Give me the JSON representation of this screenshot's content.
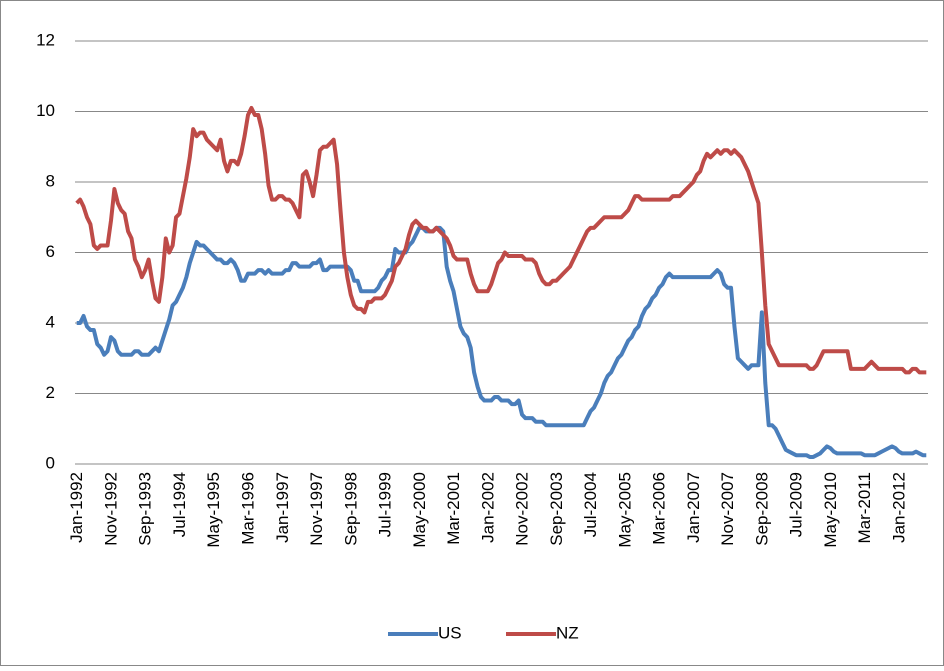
{
  "chart_data": {
    "type": "line",
    "categories": [
      "Jan-1992",
      null,
      null,
      null,
      null,
      null,
      null,
      null,
      null,
      null,
      "Nov-1992",
      null,
      null,
      null,
      null,
      null,
      null,
      null,
      null,
      null,
      "Sep-1993",
      null,
      null,
      null,
      null,
      null,
      null,
      null,
      null,
      null,
      "Jul-1994",
      null,
      null,
      null,
      null,
      null,
      null,
      null,
      null,
      null,
      "May-1995",
      null,
      null,
      null,
      null,
      null,
      null,
      null,
      null,
      null,
      "Mar-1996",
      null,
      null,
      null,
      null,
      null,
      null,
      null,
      null,
      null,
      "Jan-1997",
      null,
      null,
      null,
      null,
      null,
      null,
      null,
      null,
      null,
      "Nov-1997",
      null,
      null,
      null,
      null,
      null,
      null,
      null,
      null,
      null,
      "Sep-1998",
      null,
      null,
      null,
      null,
      null,
      null,
      null,
      null,
      null,
      "Jul-1999",
      null,
      null,
      null,
      null,
      null,
      null,
      null,
      null,
      null,
      "May-2000",
      null,
      null,
      null,
      null,
      null,
      null,
      null,
      null,
      null,
      "Mar-2001",
      null,
      null,
      null,
      null,
      null,
      null,
      null,
      null,
      null,
      "Jan-2002",
      null,
      null,
      null,
      null,
      null,
      null,
      null,
      null,
      null,
      "Nov-2002",
      null,
      null,
      null,
      null,
      null,
      null,
      null,
      null,
      null,
      "Sep-2003",
      null,
      null,
      null,
      null,
      null,
      null,
      null,
      null,
      null,
      "Jul-2004",
      null,
      null,
      null,
      null,
      null,
      null,
      null,
      null,
      null,
      "May-2005",
      null,
      null,
      null,
      null,
      null,
      null,
      null,
      null,
      null,
      "Mar-2006",
      null,
      null,
      null,
      null,
      null,
      null,
      null,
      null,
      null,
      "Jan-2007",
      null,
      null,
      null,
      null,
      null,
      null,
      null,
      null,
      null,
      "Nov-2007",
      null,
      null,
      null,
      null,
      null,
      null,
      null,
      null,
      null,
      "Sep-2008",
      null,
      null,
      null,
      null,
      null,
      null,
      null,
      null,
      null,
      "Jul-2009",
      null,
      null,
      null,
      null,
      null,
      null,
      null,
      null,
      null,
      "May-2010",
      null,
      null,
      null,
      null,
      null,
      null,
      null,
      null,
      null,
      "Mar-2011",
      null,
      null,
      null,
      null,
      null,
      null,
      null,
      null,
      null,
      "Jan-2012",
      null,
      null,
      null,
      null,
      null,
      null,
      null,
      null
    ],
    "series": [
      {
        "name": "US",
        "color": "#4a7ebb",
        "values": [
          4.0,
          4.0,
          4.2,
          3.9,
          3.8,
          3.8,
          3.4,
          3.3,
          3.1,
          3.2,
          3.6,
          3.5,
          3.2,
          3.1,
          3.1,
          3.1,
          3.1,
          3.2,
          3.2,
          3.1,
          3.1,
          3.1,
          3.2,
          3.3,
          3.2,
          3.5,
          3.8,
          4.1,
          4.5,
          4.6,
          4.8,
          5.0,
          5.3,
          5.7,
          6.0,
          6.3,
          6.2,
          6.2,
          6.1,
          6.0,
          5.9,
          5.8,
          5.8,
          5.7,
          5.7,
          5.8,
          5.7,
          5.5,
          5.2,
          5.2,
          5.4,
          5.4,
          5.4,
          5.5,
          5.5,
          5.4,
          5.5,
          5.4,
          5.4,
          5.4,
          5.4,
          5.5,
          5.5,
          5.7,
          5.7,
          5.6,
          5.6,
          5.6,
          5.6,
          5.7,
          5.7,
          5.8,
          5.5,
          5.5,
          5.6,
          5.6,
          5.6,
          5.6,
          5.6,
          5.6,
          5.5,
          5.2,
          5.2,
          4.9,
          4.9,
          4.9,
          4.9,
          4.9,
          5.0,
          5.2,
          5.3,
          5.5,
          5.5,
          6.1,
          6.0,
          6.0,
          6.0,
          6.2,
          6.3,
          6.5,
          6.7,
          6.7,
          6.6,
          6.6,
          6.6,
          6.7,
          6.7,
          6.6,
          5.6,
          5.2,
          4.9,
          4.4,
          3.9,
          3.7,
          3.6,
          3.3,
          2.6,
          2.2,
          1.9,
          1.8,
          1.8,
          1.8,
          1.9,
          1.9,
          1.8,
          1.8,
          1.8,
          1.7,
          1.7,
          1.8,
          1.4,
          1.3,
          1.3,
          1.3,
          1.2,
          1.2,
          1.2,
          1.1,
          1.1,
          1.1,
          1.1,
          1.1,
          1.1,
          1.1,
          1.1,
          1.1,
          1.1,
          1.1,
          1.1,
          1.3,
          1.5,
          1.6,
          1.8,
          2.0,
          2.3,
          2.5,
          2.6,
          2.8,
          3.0,
          3.1,
          3.3,
          3.5,
          3.6,
          3.8,
          3.9,
          4.2,
          4.4,
          4.5,
          4.7,
          4.8,
          5.0,
          5.1,
          5.3,
          5.4,
          5.3,
          5.3,
          5.3,
          5.3,
          5.3,
          5.3,
          5.3,
          5.3,
          5.3,
          5.3,
          5.3,
          5.3,
          5.4,
          5.5,
          5.4,
          5.1,
          5.0,
          5.0,
          3.9,
          3.0,
          2.9,
          2.8,
          2.7,
          2.8,
          2.8,
          2.8,
          4.3,
          2.3,
          1.1,
          1.1,
          1.0,
          0.8,
          0.6,
          0.4,
          0.35,
          0.3,
          0.25,
          0.25,
          0.25,
          0.25,
          0.2,
          0.2,
          0.25,
          0.3,
          0.4,
          0.5,
          0.45,
          0.35,
          0.3,
          0.3,
          0.3,
          0.3,
          0.3,
          0.3,
          0.3,
          0.3,
          0.25,
          0.25,
          0.25,
          0.25,
          0.3,
          0.35,
          0.4,
          0.45,
          0.5,
          0.45,
          0.35,
          0.3,
          0.3,
          0.3,
          0.3,
          0.35,
          0.3,
          0.25,
          0.25
        ]
      },
      {
        "name": "NZ",
        "color": "#be4b48",
        "values": [
          7.4,
          7.5,
          7.3,
          7.0,
          6.8,
          6.2,
          6.1,
          6.2,
          6.2,
          6.2,
          6.9,
          7.8,
          7.4,
          7.2,
          7.1,
          6.6,
          6.4,
          5.8,
          5.6,
          5.3,
          5.5,
          5.8,
          5.2,
          4.7,
          4.6,
          5.3,
          6.4,
          6.0,
          6.2,
          7.0,
          7.1,
          7.6,
          8.1,
          8.7,
          9.5,
          9.3,
          9.4,
          9.4,
          9.2,
          9.1,
          9.0,
          8.9,
          9.2,
          8.6,
          8.3,
          8.6,
          8.6,
          8.5,
          8.8,
          9.3,
          9.9,
          10.1,
          9.9,
          9.9,
          9.5,
          8.8,
          7.9,
          7.5,
          7.5,
          7.6,
          7.6,
          7.5,
          7.5,
          7.4,
          7.2,
          7.0,
          8.2,
          8.3,
          8.0,
          7.6,
          8.2,
          8.9,
          9.0,
          9.0,
          9.1,
          9.2,
          8.5,
          7.2,
          6.0,
          5.3,
          4.8,
          4.5,
          4.4,
          4.4,
          4.3,
          4.6,
          4.6,
          4.7,
          4.7,
          4.7,
          4.8,
          5.0,
          5.2,
          5.6,
          5.7,
          5.9,
          6.1,
          6.5,
          6.8,
          6.9,
          6.8,
          6.7,
          6.7,
          6.6,
          6.6,
          6.7,
          6.6,
          6.5,
          6.4,
          6.2,
          5.9,
          5.8,
          5.8,
          5.8,
          5.8,
          5.4,
          5.1,
          4.9,
          4.9,
          4.9,
          4.9,
          5.1,
          5.4,
          5.7,
          5.8,
          6.0,
          5.9,
          5.9,
          5.9,
          5.9,
          5.9,
          5.8,
          5.8,
          5.8,
          5.7,
          5.4,
          5.2,
          5.1,
          5.1,
          5.2,
          5.2,
          5.3,
          5.4,
          5.5,
          5.6,
          5.8,
          6.0,
          6.2,
          6.4,
          6.6,
          6.7,
          6.7,
          6.8,
          6.9,
          7.0,
          7.0,
          7.0,
          7.0,
          7.0,
          7.0,
          7.1,
          7.2,
          7.4,
          7.6,
          7.6,
          7.5,
          7.5,
          7.5,
          7.5,
          7.5,
          7.5,
          7.5,
          7.5,
          7.5,
          7.6,
          7.6,
          7.6,
          7.7,
          7.8,
          7.9,
          8.0,
          8.2,
          8.3,
          8.6,
          8.8,
          8.7,
          8.8,
          8.9,
          8.8,
          8.9,
          8.9,
          8.8,
          8.9,
          8.8,
          8.7,
          8.5,
          8.3,
          8.0,
          7.7,
          7.4,
          6.0,
          4.5,
          3.4,
          3.2,
          3.0,
          2.8,
          2.8,
          2.8,
          2.8,
          2.8,
          2.8,
          2.8,
          2.8,
          2.8,
          2.7,
          2.7,
          2.8,
          3.0,
          3.2,
          3.2,
          3.2,
          3.2,
          3.2,
          3.2,
          3.2,
          3.2,
          2.7,
          2.7,
          2.7,
          2.7,
          2.7,
          2.8,
          2.9,
          2.8,
          2.7,
          2.7,
          2.7,
          2.7,
          2.7,
          2.7,
          2.7,
          2.7,
          2.6,
          2.6,
          2.7,
          2.7,
          2.6,
          2.6,
          2.6
        ]
      }
    ],
    "ylim": [
      0,
      12
    ],
    "yticks": [
      0,
      2,
      4,
      6,
      8,
      10,
      12
    ],
    "grid": true,
    "legend": "bottom"
  }
}
